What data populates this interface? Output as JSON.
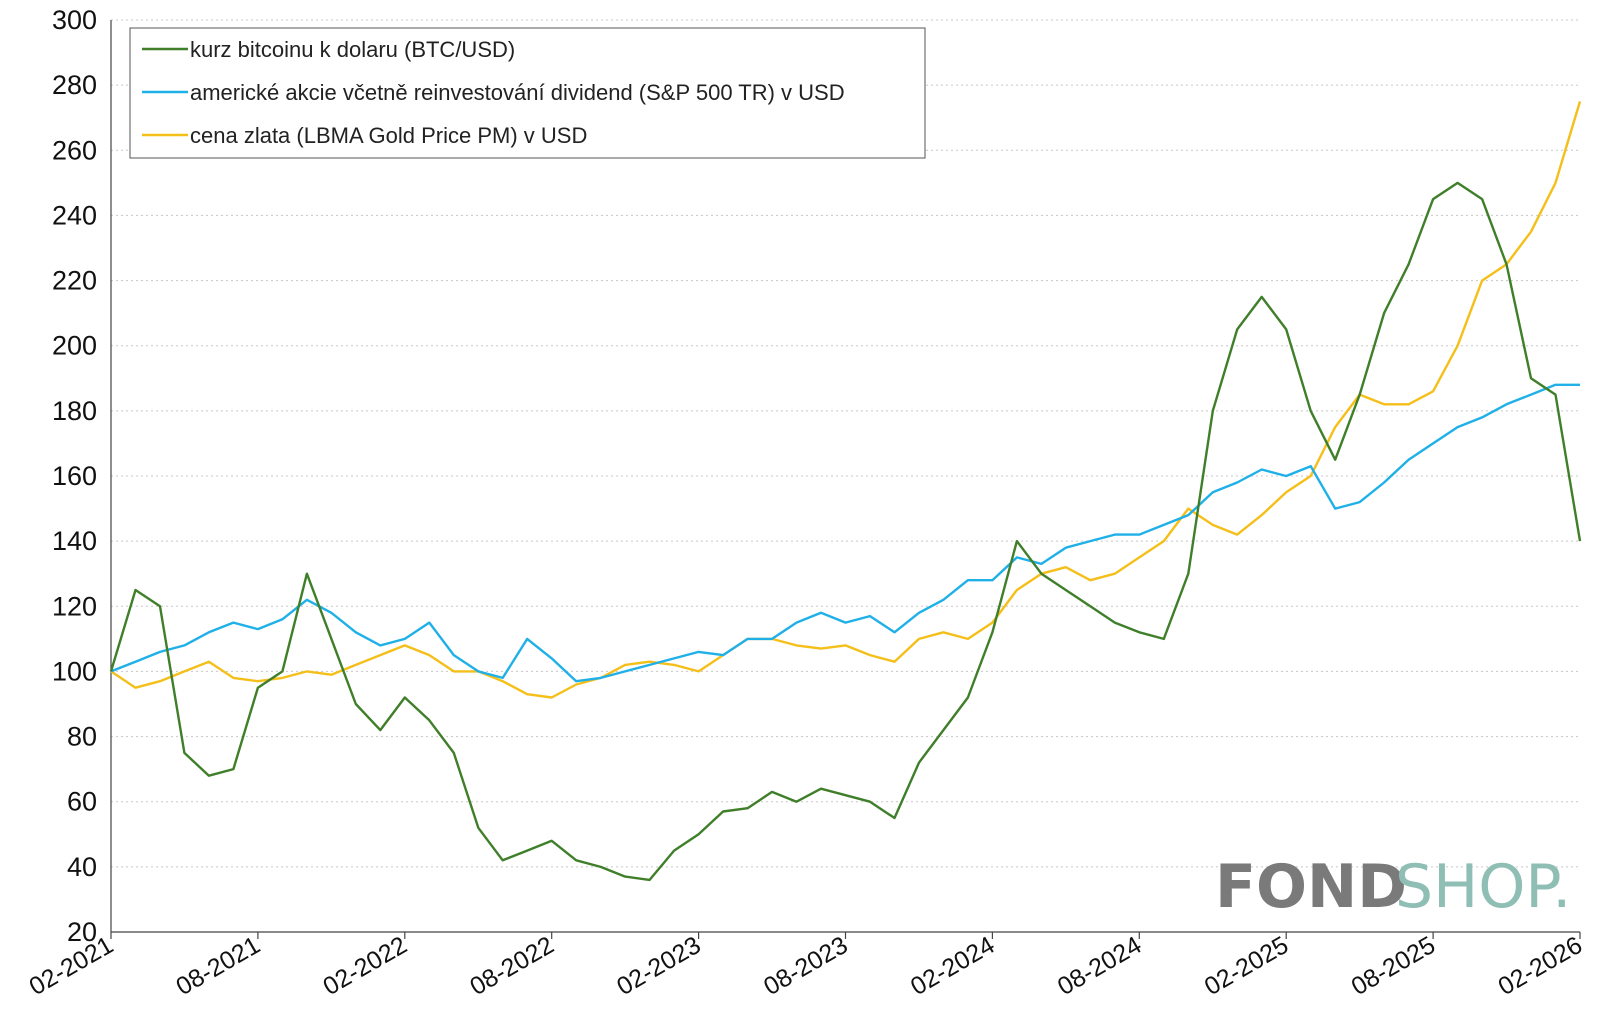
{
  "chart_data": {
    "type": "line",
    "title": "",
    "xlabel": "",
    "ylabel": "",
    "ylim": [
      20,
      300
    ],
    "yticks": [
      20,
      40,
      60,
      80,
      100,
      120,
      140,
      160,
      180,
      200,
      220,
      240,
      260,
      280,
      300
    ],
    "x_tick_labels": [
      "02-2021",
      "08-2021",
      "02-2022",
      "08-2022",
      "02-2023",
      "08-2023",
      "02-2024",
      "08-2024",
      "02-2025",
      "08-2025",
      "02-2026"
    ],
    "grid": "horizontal dotted",
    "legend_position": "top-left",
    "x": [
      "02-2021",
      "03-2021",
      "04-2021",
      "05-2021",
      "06-2021",
      "07-2021",
      "08-2021",
      "09-2021",
      "10-2021",
      "11-2021",
      "12-2021",
      "01-2022",
      "02-2022",
      "03-2022",
      "04-2022",
      "05-2022",
      "06-2022",
      "07-2022",
      "08-2022",
      "09-2022",
      "10-2022",
      "11-2022",
      "12-2022",
      "01-2023",
      "02-2023",
      "03-2023",
      "04-2023",
      "05-2023",
      "06-2023",
      "07-2023",
      "08-2023",
      "09-2023",
      "10-2023",
      "11-2023",
      "12-2023",
      "01-2024",
      "02-2024",
      "03-2024",
      "04-2024",
      "05-2024",
      "06-2024",
      "07-2024",
      "08-2024",
      "09-2024",
      "10-2024",
      "11-2024",
      "12-2024",
      "01-2025",
      "02-2025",
      "03-2025",
      "04-2025",
      "05-2025",
      "06-2025",
      "07-2025",
      "08-2025",
      "09-2025",
      "10-2025",
      "11-2025",
      "12-2025",
      "01-2026",
      "02-2026"
    ],
    "series": [
      {
        "name": "kurz bitcoinu k dolaru (BTC/USD)",
        "color": "#3f7f2a",
        "values": [
          100,
          125,
          120,
          75,
          68,
          70,
          95,
          100,
          130,
          110,
          90,
          82,
          92,
          85,
          75,
          52,
          42,
          45,
          48,
          42,
          40,
          37,
          36,
          45,
          50,
          57,
          58,
          63,
          60,
          64,
          62,
          60,
          55,
          72,
          82,
          92,
          112,
          140,
          130,
          125,
          120,
          115,
          112,
          110,
          130,
          180,
          205,
          215,
          205,
          180,
          165,
          185,
          210,
          225,
          245,
          250,
          245,
          225,
          190,
          185,
          140
        ]
      },
      {
        "name": "americké akcie včetně reinvestování dividend (S&P 500 TR) v USD",
        "color": "#1fb0e8",
        "values": [
          100,
          103,
          106,
          108,
          112,
          115,
          113,
          116,
          122,
          118,
          112,
          108,
          110,
          115,
          105,
          100,
          98,
          110,
          104,
          97,
          98,
          100,
          102,
          104,
          106,
          105,
          110,
          110,
          115,
          118,
          115,
          117,
          112,
          118,
          122,
          128,
          128,
          135,
          133,
          138,
          140,
          142,
          142,
          145,
          148,
          155,
          158,
          162,
          160,
          163,
          150,
          152,
          158,
          165,
          170,
          175,
          178,
          182,
          185,
          188,
          188
        ]
      },
      {
        "name": "cena zlata (LBMA Gold Price PM) v USD",
        "color": "#f5bf1a",
        "values": [
          100,
          95,
          97,
          100,
          103,
          98,
          97,
          98,
          100,
          99,
          102,
          105,
          108,
          105,
          100,
          100,
          97,
          93,
          92,
          96,
          98,
          102,
          103,
          102,
          100,
          105,
          110,
          110,
          108,
          107,
          108,
          105,
          103,
          110,
          112,
          110,
          115,
          125,
          130,
          132,
          128,
          130,
          135,
          140,
          150,
          145,
          142,
          148,
          155,
          160,
          175,
          185,
          182,
          182,
          186,
          200,
          220,
          225,
          235,
          250,
          275
        ]
      }
    ]
  },
  "logo": {
    "part1": "FOND",
    "part2": "SHOP."
  }
}
